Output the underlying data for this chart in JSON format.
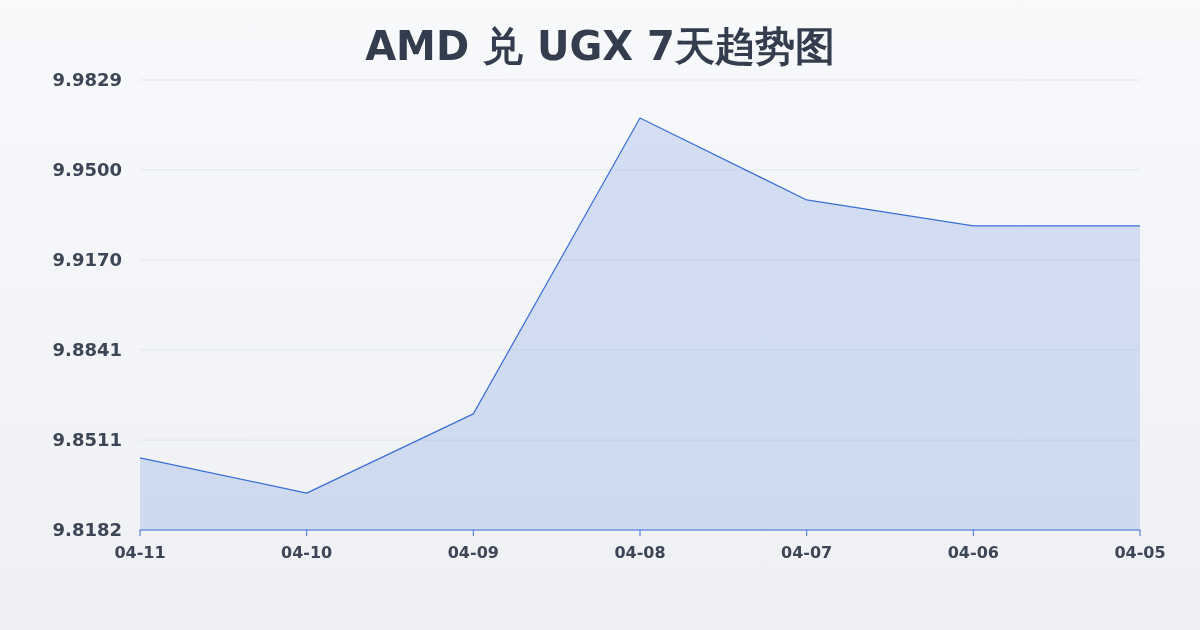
{
  "chart_data": {
    "type": "area",
    "title": "AMD 兑 UGX 7天趋势图",
    "categories": [
      "04-11",
      "04-10",
      "04-09",
      "04-08",
      "04-07",
      "04-06",
      "04-05"
    ],
    "series": [
      {
        "color": "#3a6fd8",
        "values": [
          9.8446,
          9.8317,
          9.8607,
          9.969,
          9.939,
          9.9295,
          9.9295
        ]
      }
    ],
    "ylim": [
      9.8182,
      9.9829
    ],
    "yticks": [
      9.8182,
      9.8511,
      9.8841,
      {
        "value": 9.917,
        "label": "9.9170"
      },
      {
        "value": 9.95,
        "label": "9.9500"
      },
      9.9829
    ],
    "grid": "y"
  }
}
